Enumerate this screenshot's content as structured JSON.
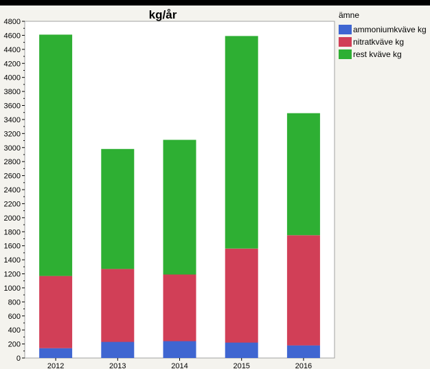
{
  "chart_data": {
    "type": "bar",
    "stacked": true,
    "title": "kg/år",
    "categories": [
      "2012",
      "2013",
      "2014",
      "2015",
      "2016"
    ],
    "series": [
      {
        "name": "ammoniumkväve kg",
        "color": "#3f66d1",
        "values": [
          140,
          230,
          240,
          220,
          180
        ]
      },
      {
        "name": "nitratkväve kg",
        "color": "#d13f57",
        "values": [
          1030,
          1040,
          950,
          1340,
          1570
        ]
      },
      {
        "name": "rest kväve kg",
        "color": "#2eaf33",
        "values": [
          3440,
          1710,
          1920,
          3030,
          1740
        ]
      }
    ],
    "ylim": [
      0,
      4800
    ],
    "yticks": [
      0,
      200,
      400,
      600,
      800,
      1000,
      1200,
      1400,
      1600,
      1800,
      2000,
      2200,
      2400,
      2600,
      2800,
      3000,
      3200,
      3400,
      3600,
      3800,
      4000,
      4200,
      4400,
      4600,
      4800
    ],
    "legend_title": "ämne",
    "legend_position": "right",
    "grid": false
  }
}
